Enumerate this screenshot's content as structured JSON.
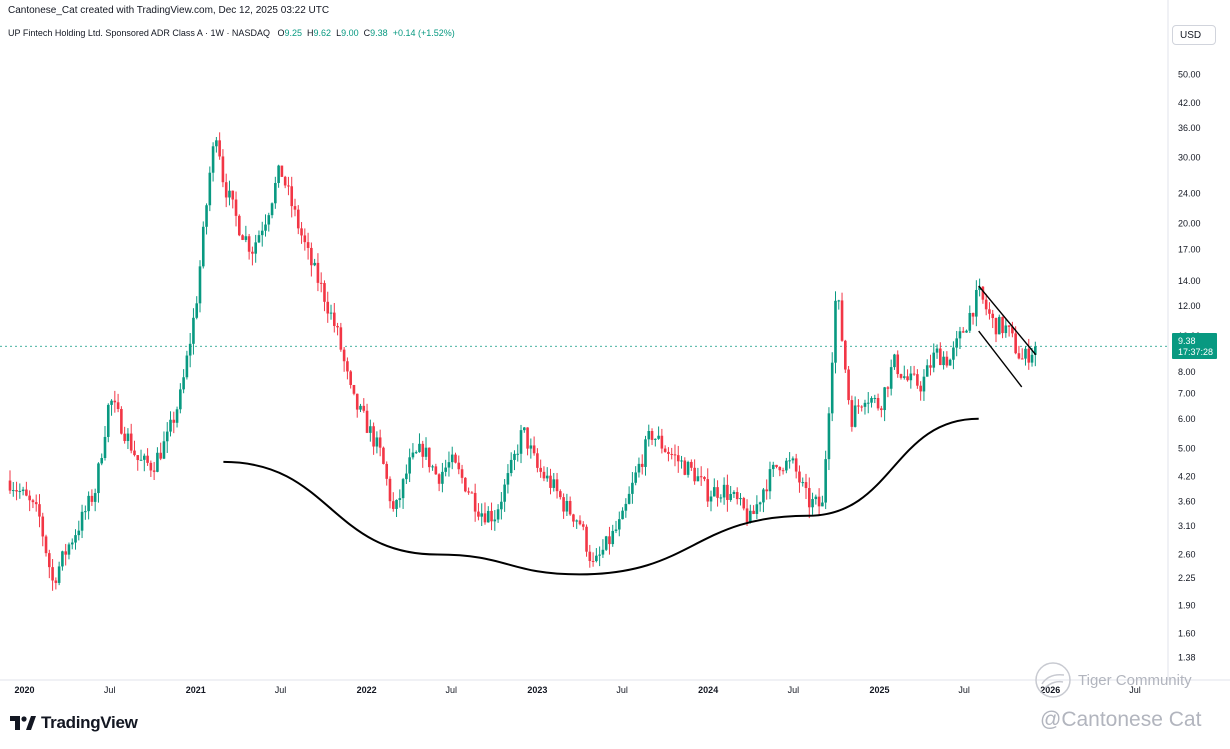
{
  "header": {
    "credit": "Cantonese_Cat created with TradingView.com, Dec 12, 2025 03:22 UTC"
  },
  "symbol": {
    "name": "UP Fintech Holding Ltd. Sponsored ADR Class A · 1W · NASDAQ",
    "o_label": "O",
    "o_value": "9.25",
    "h_label": "H",
    "h_value": "9.62",
    "l_label": "L",
    "l_value": "9.00",
    "c_label": "C",
    "c_value": "9.38",
    "change": "+0.14 (+1.52%)"
  },
  "price_axis": {
    "currency": "USD",
    "last_price": "9.38",
    "countdown": "17:37:28"
  },
  "brand": {
    "logo_text": "TradingView",
    "icon": "tradingview-logo-icon"
  },
  "watermarks": {
    "community": "Tiger Community",
    "author": "@Cantonese Cat"
  },
  "colors": {
    "up": "#089981",
    "down": "#f23645",
    "last_price_tag": "#089981",
    "annotation_line": "#000000",
    "axis_text": "#131722"
  },
  "chart_data": {
    "type": "candlestick",
    "title": "UP Fintech Holding Ltd. Sponsored ADR Class A · 1W · NASDAQ",
    "scale": "log",
    "ylim": [
      1.2,
      60
    ],
    "y_ticks": [
      "50.00",
      "42.00",
      "36.00",
      "30.00",
      "24.00",
      "20.00",
      "17.00",
      "14.00",
      "12.00",
      "10.00",
      "8.00",
      "7.00",
      "6.00",
      "5.00",
      "4.20",
      "3.60",
      "3.10",
      "2.60",
      "2.25",
      "1.90",
      "1.60",
      "1.38"
    ],
    "x_ticks": [
      "2020",
      "Jul",
      "2021",
      "Jul",
      "2022",
      "Jul",
      "2023",
      "Jul",
      "2024",
      "Jul",
      "2025",
      "Jul",
      "2026",
      "Jul"
    ],
    "x_tick_dates": [
      "2020-01",
      "2020-07",
      "2021-01",
      "2021-07",
      "2022-01",
      "2022-07",
      "2023-01",
      "2023-07",
      "2024-01",
      "2024-07",
      "2025-01",
      "2025-07",
      "2026-01",
      "2026-07"
    ],
    "last_price": 9.38,
    "price_path": [
      [
        "2019-12",
        4.1
      ],
      [
        "2020-01",
        3.7
      ],
      [
        "2020-02",
        3.3
      ],
      [
        "2020-03",
        2.2
      ],
      [
        "2020-04",
        2.7
      ],
      [
        "2020-05",
        3.2
      ],
      [
        "2020-06",
        3.9
      ],
      [
        "2020-07",
        6.8
      ],
      [
        "2020-08",
        5.6
      ],
      [
        "2020-09",
        4.6
      ],
      [
        "2020-10",
        4.5
      ],
      [
        "2020-11",
        5.3
      ],
      [
        "2020-12",
        7.0
      ],
      [
        "2021-01",
        12.0
      ],
      [
        "2021-02",
        28.0
      ],
      [
        "2021-02-15",
        36.0
      ],
      [
        "2021-03",
        26.0
      ],
      [
        "2021-04",
        20.0
      ],
      [
        "2021-05",
        17.0
      ],
      [
        "2021-06",
        21.0
      ],
      [
        "2021-07",
        28.0
      ],
      [
        "2021-08",
        21.0
      ],
      [
        "2021-09",
        16.0
      ],
      [
        "2021-10",
        13.0
      ],
      [
        "2021-11",
        10.0
      ],
      [
        "2021-12",
        6.8
      ],
      [
        "2022-01",
        5.8
      ],
      [
        "2022-02",
        4.8
      ],
      [
        "2022-03",
        3.3
      ],
      [
        "2022-04",
        4.5
      ],
      [
        "2022-05",
        5.0
      ],
      [
        "2022-06",
        4.2
      ],
      [
        "2022-07",
        4.6
      ],
      [
        "2022-08",
        4.0
      ],
      [
        "2022-09",
        3.4
      ],
      [
        "2022-10",
        3.3
      ],
      [
        "2022-11",
        4.2
      ],
      [
        "2022-12",
        5.6
      ],
      [
        "2023-01",
        4.4
      ],
      [
        "2023-02",
        4.0
      ],
      [
        "2023-03",
        3.5
      ],
      [
        "2023-04",
        3.2
      ],
      [
        "2023-05",
        2.4
      ],
      [
        "2023-06",
        2.8
      ],
      [
        "2023-07",
        3.2
      ],
      [
        "2023-08",
        4.3
      ],
      [
        "2023-09",
        5.5
      ],
      [
        "2023-10",
        5.0
      ],
      [
        "2023-11",
        4.6
      ],
      [
        "2023-12",
        4.3
      ],
      [
        "2024-01",
        3.8
      ],
      [
        "2024-02",
        3.9
      ],
      [
        "2024-03",
        3.6
      ],
      [
        "2024-04",
        3.2
      ],
      [
        "2024-05",
        4.0
      ],
      [
        "2024-06",
        4.6
      ],
      [
        "2024-07",
        4.5
      ],
      [
        "2024-08",
        3.6
      ],
      [
        "2024-09",
        3.5
      ],
      [
        "2024-10",
        13.5
      ],
      [
        "2024-11",
        6.0
      ],
      [
        "2024-12",
        7.0
      ],
      [
        "2025-01",
        6.5
      ],
      [
        "2025-02",
        8.5
      ],
      [
        "2025-03",
        7.6
      ],
      [
        "2025-04",
        7.4
      ],
      [
        "2025-05",
        9.0
      ],
      [
        "2025-06",
        8.6
      ],
      [
        "2025-07",
        10.5
      ],
      [
        "2025-08",
        13.0
      ],
      [
        "2025-09",
        10.8
      ],
      [
        "2025-10",
        10.4
      ],
      [
        "2025-11",
        8.6
      ],
      [
        "2025-12",
        9.38
      ]
    ],
    "annotations": {
      "rounding_bottom_arc": [
        [
          "2021-03",
          4.6
        ],
        [
          "2022-06",
          2.6
        ],
        [
          "2023-04",
          2.3
        ],
        [
          "2024-08",
          3.3
        ],
        [
          "2025-08",
          6.0
        ]
      ],
      "channel_upper": [
        [
          "2025-08",
          13.6
        ],
        [
          "2025-12",
          8.9
        ]
      ],
      "channel_lower": [
        [
          "2025-08",
          10.3
        ],
        [
          "2025-11",
          7.3
        ]
      ]
    }
  }
}
